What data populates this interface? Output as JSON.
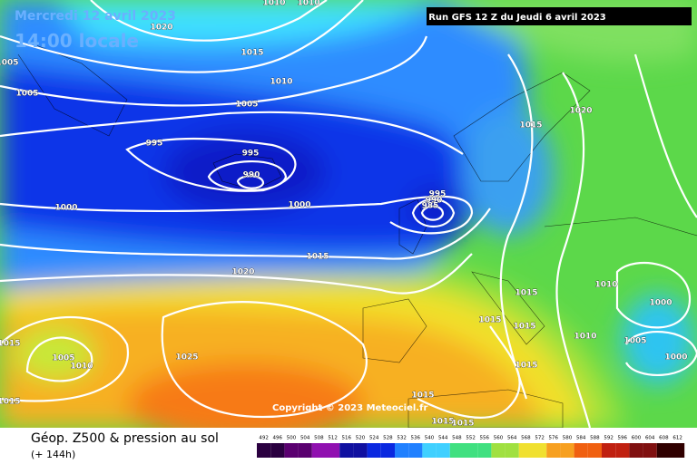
{
  "header": {
    "date": "Mercredi 12 avril 2023",
    "time": "14:00 locale",
    "run": "Run GFS 12 Z du Jeudi 6 avril 2023"
  },
  "copyright": "Copyright © 2023 Meteociel.fr",
  "footer": {
    "title": "Géop. Z500 & pression au sol",
    "lead": "(+ 144h)"
  },
  "legend": {
    "levels": [
      492,
      496,
      500,
      504,
      508,
      512,
      516,
      520,
      524,
      528,
      532,
      536,
      540,
      544,
      548,
      552,
      556,
      560,
      564,
      568,
      572,
      576,
      580,
      584,
      588,
      592,
      596,
      600,
      604,
      608,
      612
    ]
  },
  "isobar_labels": [
    1020,
    1015,
    1010,
    1005,
    1005,
    1005,
    995,
    995,
    990,
    1000,
    1000,
    995,
    990,
    985,
    1015,
    1020,
    1015,
    1020,
    1015,
    1015,
    1015,
    1010,
    1000,
    1010,
    1005,
    1000,
    1015,
    1025,
    1005,
    1010,
    1015,
    1015,
    1015,
    1015,
    1015,
    1010,
    1010
  ]
}
